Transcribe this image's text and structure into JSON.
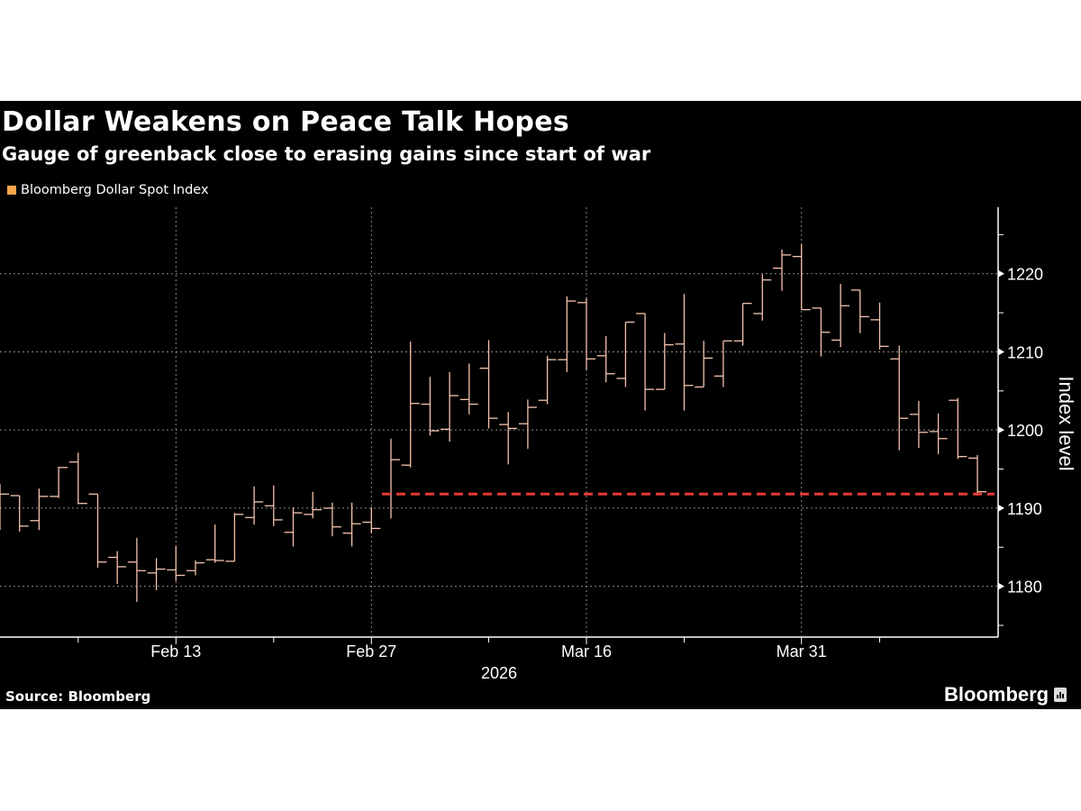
{
  "header": {
    "title": "Dollar Weakens on Peace Talk Hopes",
    "subtitle": "Gauge of greenback close to erasing gains since start of war"
  },
  "footer": {
    "source": "Source: Bloomberg",
    "brand": "Bloomberg",
    "brand_icon": "bloomberg-chart-icon"
  },
  "colors": {
    "background": "#000000",
    "bars": "#f4c3ad",
    "legend_swatch": "#f7a54a",
    "reference_line": "#e53935",
    "grid": "#8a8a8a"
  },
  "chart_data": {
    "type": "ohlc",
    "title": "Dollar Weakens on Peace Talk Hopes",
    "subtitle": "Gauge of greenback close to erasing gains since start of war",
    "legend": [
      {
        "name": "Bloomberg Dollar Spot Index",
        "color": "#f7a54a"
      }
    ],
    "legend_placement": "top-left",
    "xlabel": "2026",
    "ylabel": "Index level",
    "y_axis_side": "right",
    "ylim": [
      1173.5,
      1228.5
    ],
    "yticks": [
      1180,
      1190,
      1200,
      1210,
      1220
    ],
    "grid": true,
    "xtick_labels": [
      "Feb 13",
      "Feb 27",
      "Mar 16",
      "Mar 31"
    ],
    "x_minor_ticks": [
      "Feb 6",
      "Feb 20",
      "Mar 9",
      "Mar 23",
      "Apr 6"
    ],
    "reference_line": {
      "value": 1191.8,
      "from": "Mar 2",
      "style": "dashed",
      "color": "#e53935"
    },
    "dates": [
      "Feb 2",
      "Feb 3",
      "Feb 4",
      "Feb 5",
      "Feb 6",
      "Feb 9",
      "Feb 10",
      "Feb 11",
      "Feb 12",
      "Feb 13",
      "Feb 16",
      "Feb 17",
      "Feb 18",
      "Feb 19",
      "Feb 20",
      "Feb 23",
      "Feb 24",
      "Feb 25",
      "Feb 26",
      "Feb 27",
      "Mar 2",
      "Mar 3",
      "Mar 4",
      "Mar 5",
      "Mar 6",
      "Mar 9",
      "Mar 10",
      "Mar 11",
      "Mar 12",
      "Mar 13",
      "Mar 16",
      "Mar 17",
      "Mar 18",
      "Mar 19",
      "Mar 20",
      "Mar 23",
      "Mar 24",
      "Mar 25",
      "Mar 26",
      "Mar 27",
      "Mar 30",
      "Mar 31",
      "Apr 1",
      "Apr 2",
      "Apr 3",
      "Apr 6",
      "Apr 7",
      "Apr 8",
      "Apr 9",
      "Apr 10",
      "Apr 13"
    ],
    "open": [
      1193.0,
      1191.6,
      1188.4,
      1191.5,
      1195.9,
      1191.8,
      1183.7,
      1183.1,
      1181.7,
      1182.1,
      1182.0,
      1183.4,
      1183.2,
      1188.8,
      1190.3,
      1186.9,
      1189.2,
      1190.0,
      1186.8,
      1188.2,
      1191.8,
      1195.5,
      1203.3,
      1200.1,
      1203.9,
      1207.9,
      1200.7,
      1200.8,
      1203.8,
      1209.0,
      1216.3,
      1209.5,
      1206.6,
      1214.9,
      1205.2,
      1211.0,
      1205.5,
      1206.9,
      1211.4,
      1214.9,
      1220.7,
      1222.2,
      1215.6,
      1211.5,
      1217.9,
      1214.1,
      1209.1,
      1202.0,
      1199.8,
      1203.8,
      1196.4
    ],
    "high": [
      1193.1,
      1191.6,
      1192.5,
      1195.3,
      1197.1,
      1191.8,
      1184.5,
      1186.2,
      1183.6,
      1185.1,
      1183.3,
      1187.9,
      1189.4,
      1192.8,
      1192.9,
      1190.1,
      1192.1,
      1190.7,
      1190.7,
      1190.1,
      1198.9,
      1211.3,
      1206.8,
      1207.4,
      1208.5,
      1211.5,
      1202.3,
      1203.9,
      1209.5,
      1217.1,
      1216.9,
      1212.0,
      1213.8,
      1214.9,
      1212.4,
      1217.4,
      1211.4,
      1211.4,
      1216.2,
      1219.9,
      1223.1,
      1223.8,
      1215.6,
      1218.7,
      1217.9,
      1216.3,
      1210.8,
      1203.7,
      1202.1,
      1204.1,
      1196.8
    ],
    "low": [
      1187.2,
      1187.0,
      1187.2,
      1191.3,
      1190.5,
      1182.4,
      1180.3,
      1178.0,
      1179.5,
      1180.7,
      1181.4,
      1183.0,
      1183.2,
      1187.9,
      1187.7,
      1185.1,
      1188.7,
      1186.4,
      1185.1,
      1186.8,
      1188.7,
      1195.2,
      1199.3,
      1198.5,
      1202.0,
      1200.2,
      1195.6,
      1197.6,
      1203.3,
      1207.4,
      1207.7,
      1206.1,
      1205.5,
      1202.5,
      1205.2,
      1202.5,
      1205.5,
      1205.5,
      1210.8,
      1214.0,
      1217.8,
      1215.4,
      1209.4,
      1210.6,
      1212.4,
      1210.3,
      1197.4,
      1197.7,
      1196.9,
      1196.3,
      1191.6
    ],
    "close": [
      1191.8,
      1187.7,
      1191.5,
      1195.2,
      1190.6,
      1183.1,
      1182.5,
      1182.0,
      1182.2,
      1181.4,
      1183.0,
      1183.3,
      1189.2,
      1190.8,
      1188.5,
      1189.4,
      1189.8,
      1187.6,
      1188.0,
      1187.4,
      1196.2,
      1203.4,
      1199.9,
      1204.4,
      1203.3,
      1201.5,
      1200.2,
      1202.9,
      1209.0,
      1216.5,
      1209.1,
      1207.2,
      1213.8,
      1205.2,
      1210.9,
      1205.7,
      1209.2,
      1211.4,
      1216.2,
      1219.2,
      1222.4,
      1215.4,
      1212.5,
      1215.9,
      1214.5,
      1210.7,
      1201.5,
      1199.7,
      1198.9,
      1196.6,
      1192.1
    ]
  }
}
